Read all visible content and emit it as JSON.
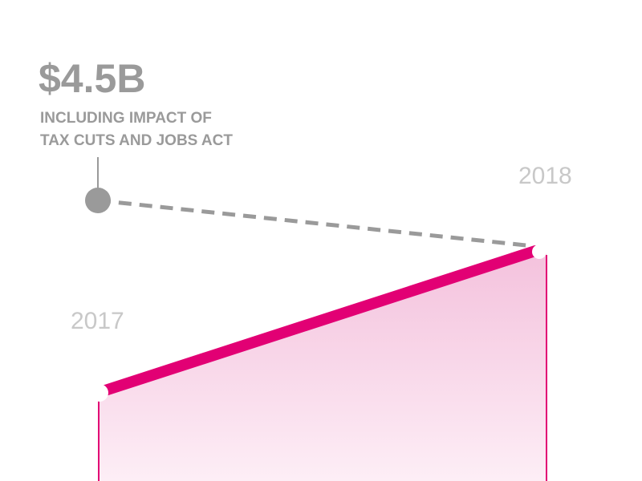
{
  "headline": {
    "value": "$4.5B",
    "note_lines": [
      "INCLUDING IMPACT OF",
      "TAX CUTS AND JOBS ACT"
    ]
  },
  "labels": {
    "start": "2017",
    "end": "2018"
  }
}
